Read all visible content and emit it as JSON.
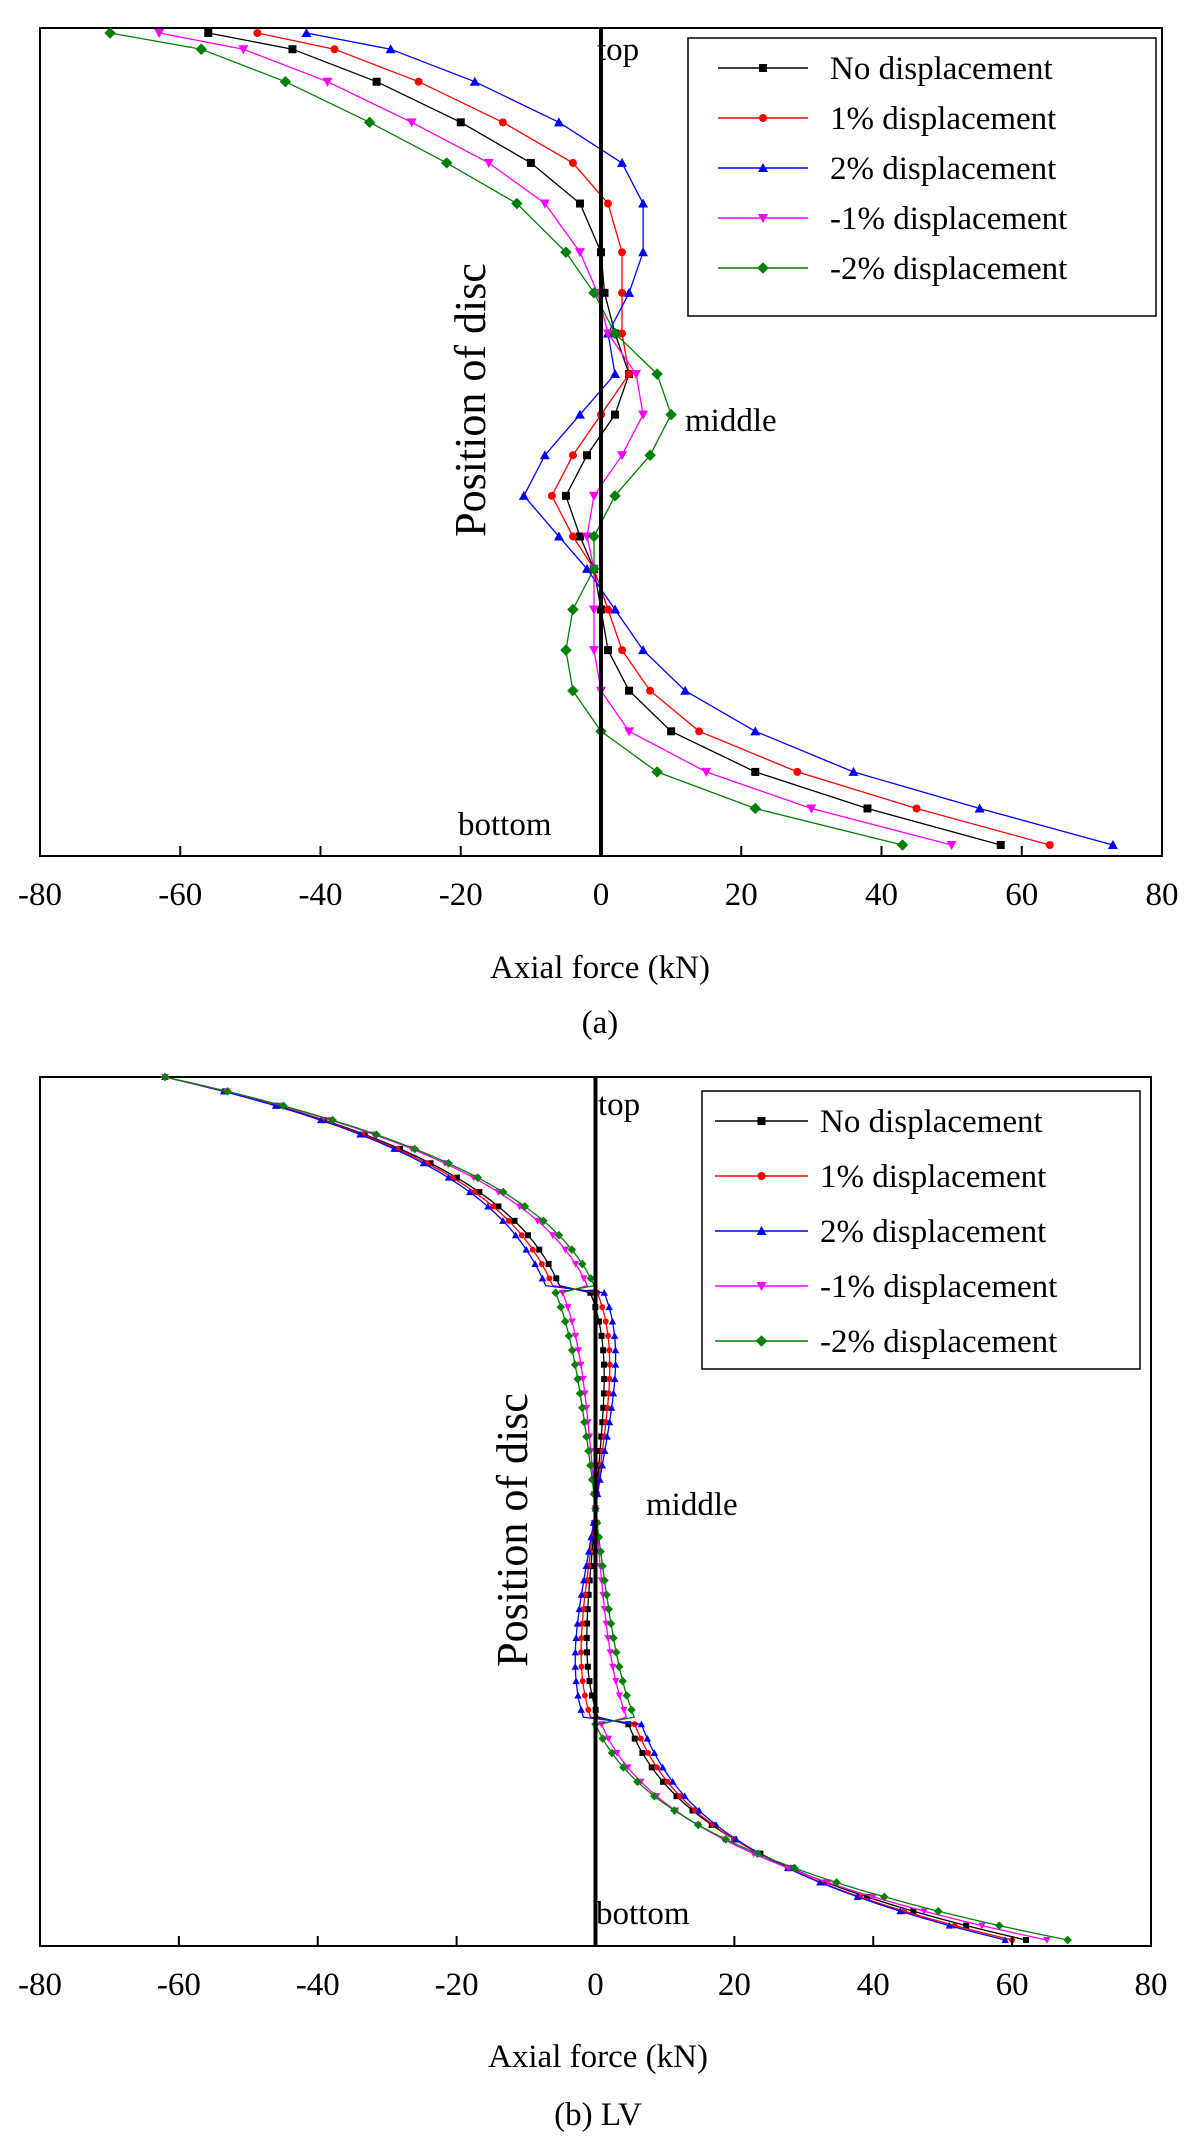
{
  "chart_data": [
    {
      "type": "line",
      "caption": "(a)",
      "xlabel": "Axial force (kN)",
      "ylabel": "Position of disc",
      "xlim": [
        -80,
        80
      ],
      "xticks": [
        "-80",
        "-60",
        "-40",
        "-20",
        "0",
        "20",
        "40",
        "60",
        "80"
      ],
      "y_positions": [
        "top",
        "middle",
        "bottom"
      ],
      "annotations": {
        "top": "top",
        "middle": "middle",
        "bottom": "bottom"
      },
      "legend_position": "top-right",
      "series": [
        {
          "name": "No displacement",
          "color": "#000000",
          "marker": "square",
          "values": [
            [
              -56,
              0
            ],
            [
              -44,
              0.02
            ],
            [
              -32,
              0.06
            ],
            [
              -20,
              0.11
            ],
            [
              -10,
              0.16
            ],
            [
              -3,
              0.21
            ],
            [
              0,
              0.27
            ],
            [
              0.5,
              0.32
            ],
            [
              2,
              0.37
            ],
            [
              4,
              0.42
            ],
            [
              2,
              0.47
            ],
            [
              -2,
              0.52
            ],
            [
              -5,
              0.57
            ],
            [
              -3,
              0.62
            ],
            [
              -1,
              0.66
            ],
            [
              0,
              0.71
            ],
            [
              1,
              0.76
            ],
            [
              4,
              0.81
            ],
            [
              10,
              0.86
            ],
            [
              22,
              0.91
            ],
            [
              38,
              0.955
            ],
            [
              57,
              1
            ]
          ]
        },
        {
          "name": "1% displacement",
          "color": "#ff0000",
          "marker": "circle",
          "values": [
            [
              -49,
              0
            ],
            [
              -38,
              0.02
            ],
            [
              -26,
              0.06
            ],
            [
              -14,
              0.11
            ],
            [
              -4,
              0.16
            ],
            [
              1,
              0.21
            ],
            [
              3,
              0.27
            ],
            [
              3,
              0.32
            ],
            [
              3,
              0.37
            ],
            [
              4,
              0.42
            ],
            [
              0,
              0.47
            ],
            [
              -4,
              0.52
            ],
            [
              -7,
              0.57
            ],
            [
              -4,
              0.62
            ],
            [
              -1,
              0.66
            ],
            [
              1,
              0.71
            ],
            [
              3,
              0.76
            ],
            [
              7,
              0.81
            ],
            [
              14,
              0.86
            ],
            [
              28,
              0.91
            ],
            [
              45,
              0.955
            ],
            [
              64,
              1
            ]
          ]
        },
        {
          "name": "2% displacement",
          "color": "#0000ff",
          "marker": "triangle-up",
          "values": [
            [
              -42,
              0
            ],
            [
              -30,
              0.02
            ],
            [
              -18,
              0.06
            ],
            [
              -6,
              0.11
            ],
            [
              3,
              0.16
            ],
            [
              6,
              0.21
            ],
            [
              6,
              0.27
            ],
            [
              4,
              0.32
            ],
            [
              1,
              0.37
            ],
            [
              2,
              0.42
            ],
            [
              -3,
              0.47
            ],
            [
              -8,
              0.52
            ],
            [
              -11,
              0.57
            ],
            [
              -6,
              0.62
            ],
            [
              -2,
              0.66
            ],
            [
              2,
              0.71
            ],
            [
              6,
              0.76
            ],
            [
              12,
              0.81
            ],
            [
              22,
              0.86
            ],
            [
              36,
              0.91
            ],
            [
              54,
              0.955
            ],
            [
              73,
              1
            ]
          ]
        },
        {
          "name": "-1% displacement",
          "color": "#ff00ff",
          "marker": "triangle-down",
          "values": [
            [
              -63,
              0
            ],
            [
              -51,
              0.02
            ],
            [
              -39,
              0.06
            ],
            [
              -27,
              0.11
            ],
            [
              -16,
              0.16
            ],
            [
              -8,
              0.21
            ],
            [
              -3,
              0.27
            ],
            [
              -0.5,
              0.32
            ],
            [
              1,
              0.37
            ],
            [
              5,
              0.42
            ],
            [
              6,
              0.47
            ],
            [
              3,
              0.52
            ],
            [
              -1,
              0.57
            ],
            [
              -2,
              0.62
            ],
            [
              -1,
              0.66
            ],
            [
              -1,
              0.71
            ],
            [
              -1,
              0.76
            ],
            [
              0,
              0.81
            ],
            [
              4,
              0.86
            ],
            [
              15,
              0.91
            ],
            [
              30,
              0.955
            ],
            [
              50,
              1
            ]
          ]
        },
        {
          "name": "-2% displacement",
          "color": "#008000",
          "marker": "diamond",
          "values": [
            [
              -70,
              0
            ],
            [
              -57,
              0.02
            ],
            [
              -45,
              0.06
            ],
            [
              -33,
              0.11
            ],
            [
              -22,
              0.16
            ],
            [
              -12,
              0.21
            ],
            [
              -5,
              0.27
            ],
            [
              -1,
              0.32
            ],
            [
              2,
              0.37
            ],
            [
              8,
              0.42
            ],
            [
              10,
              0.47
            ],
            [
              7,
              0.52
            ],
            [
              2,
              0.57
            ],
            [
              -1,
              0.62
            ],
            [
              -1,
              0.66
            ],
            [
              -4,
              0.71
            ],
            [
              -5,
              0.76
            ],
            [
              -4,
              0.81
            ],
            [
              0,
              0.86
            ],
            [
              8,
              0.91
            ],
            [
              22,
              0.955
            ],
            [
              43,
              1
            ]
          ]
        }
      ]
    },
    {
      "type": "line",
      "caption": "(b) LV",
      "xlabel": "Axial force (kN)",
      "ylabel": "Position of disc",
      "xlim": [
        -80,
        80
      ],
      "xticks": [
        "-80",
        "-60",
        "-40",
        "-20",
        "0",
        "20",
        "40",
        "60",
        "80"
      ],
      "y_positions": [
        "top",
        "middle",
        "bottom"
      ],
      "annotations": {
        "top": "top",
        "middle": "middle",
        "bottom": "bottom"
      },
      "legend_position": "top-right",
      "series": [
        {
          "name": "No displacement",
          "color": "#000000",
          "marker": "square",
          "endpoint": 62,
          "waist": 2
        },
        {
          "name": "1% displacement",
          "color": "#ff0000",
          "marker": "circle",
          "endpoint": 60,
          "waist": 3
        },
        {
          "name": "2% displacement",
          "color": "#0000ff",
          "marker": "triangle-up",
          "endpoint": 59,
          "waist": 4
        },
        {
          "name": "-1% displacement",
          "color": "#ff00ff",
          "marker": "triangle-down",
          "endpoint": 65,
          "waist": -2
        },
        {
          "name": "-2% displacement",
          "color": "#008000",
          "marker": "diamond",
          "endpoint": 68,
          "waist": -3
        }
      ]
    }
  ]
}
